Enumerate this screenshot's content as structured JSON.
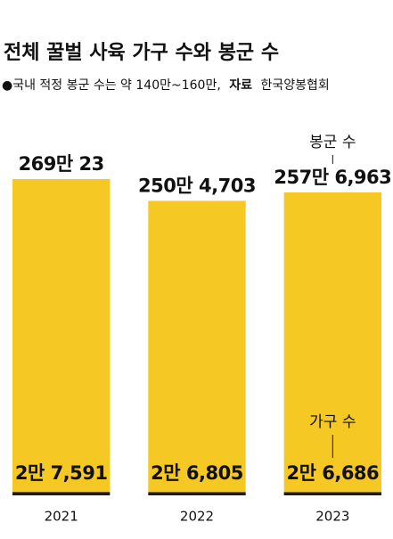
{
  "chart_data": {
    "type": "bar",
    "title": "전체 꿀벌 사육 가구 수와 봉군 수",
    "subtitle": "●국내 적정 봉군 수는 약 140만~160만,",
    "source_label": "자료",
    "source": "한국양봉협회",
    "categories": [
      "2021",
      "2022",
      "2023"
    ],
    "series": [
      {
        "name": "봉군 수",
        "color": "#f5c824",
        "values": [
          2690023,
          2504703,
          2576963
        ],
        "value_labels": [
          "269만 23",
          "250만 4,703",
          "257만 6,963"
        ]
      },
      {
        "name": "가구 수",
        "color": "#1a1a1a",
        "values": [
          27591,
          26805,
          26686
        ],
        "value_labels": [
          "2만 7,591",
          "2만 6,805",
          "2만 6,686"
        ]
      }
    ]
  }
}
